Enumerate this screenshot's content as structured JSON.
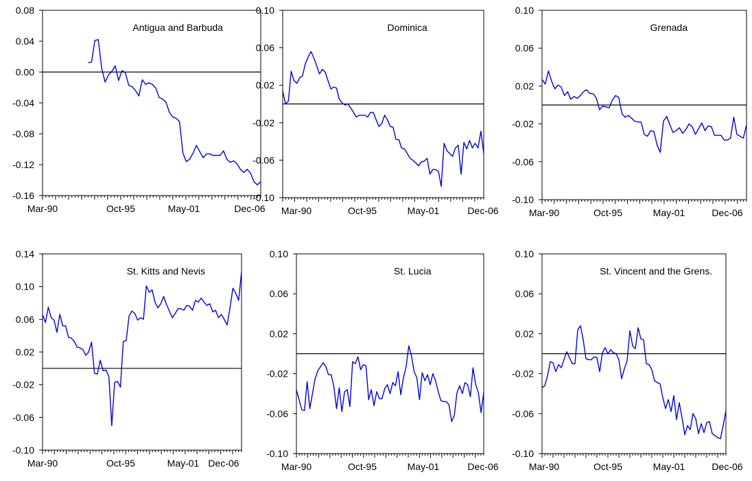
{
  "chart_data": [
    {
      "type": "line",
      "title": "Antigua and Barbuda",
      "xlabel": "",
      "ylabel": "",
      "x_tick_labels": [
        "Mar-90",
        "Oct-95",
        "May-01",
        "Dec-06"
      ],
      "y_tick_labels": [
        "0.08",
        "0.04",
        "0.00",
        "-0.04",
        "-0.08",
        "-0.12",
        "-0.16"
      ],
      "ylim": [
        -0.16,
        0.08
      ],
      "reference_line": 0.0,
      "grid": false,
      "line_color": "#0000e6",
      "series": [
        {
          "x_start": "Q3-1993",
          "frequency": "quarterly",
          "values": [
            0.012,
            0.013,
            0.041,
            0.042,
            0.005,
            -0.013,
            -0.004,
            0.001,
            0.008,
            -0.011,
            0.002,
            -0.001,
            -0.017,
            -0.019,
            -0.024,
            -0.031,
            -0.01,
            -0.016,
            -0.014,
            -0.016,
            -0.021,
            -0.033,
            -0.035,
            -0.039,
            -0.052,
            -0.058,
            -0.06,
            -0.064,
            -0.105,
            -0.116,
            -0.113,
            -0.105,
            -0.095,
            -0.103,
            -0.111,
            -0.106,
            -0.106,
            -0.108,
            -0.108,
            -0.108,
            -0.102,
            -0.113,
            -0.117,
            -0.115,
            -0.119,
            -0.126,
            -0.13,
            -0.126,
            -0.131,
            -0.142,
            -0.146,
            -0.142
          ]
        }
      ]
    },
    {
      "type": "line",
      "title": "Dominica",
      "xlabel": "",
      "ylabel": "",
      "x_tick_labels": [
        "Mar-90",
        "Oct-95",
        "May-01",
        "Dec-06"
      ],
      "y_tick_labels": [
        "0.10",
        "0.06",
        "0.02",
        "-0.02",
        "-0.06",
        "-0.10"
      ],
      "ylim": [
        -0.1,
        0.1
      ],
      "reference_line": 0.0,
      "grid": false,
      "line_color": "#0000e6",
      "series": [
        {
          "x_start": "Q1-1990",
          "frequency": "quarterly",
          "values": [
            0.014,
            0.0,
            0.003,
            0.035,
            0.025,
            0.022,
            0.028,
            0.03,
            0.043,
            0.05,
            0.056,
            0.049,
            0.041,
            0.032,
            0.037,
            0.034,
            0.025,
            0.016,
            0.018,
            0.017,
            0.005,
            0.001,
            -0.001,
            0.0,
            -0.004,
            -0.009,
            -0.014,
            -0.012,
            -0.012,
            -0.012,
            -0.014,
            -0.009,
            -0.009,
            -0.017,
            -0.024,
            -0.021,
            -0.012,
            -0.017,
            -0.024,
            -0.025,
            -0.038,
            -0.038,
            -0.047,
            -0.048,
            -0.053,
            -0.058,
            -0.06,
            -0.063,
            -0.066,
            -0.062,
            -0.061,
            -0.058,
            -0.075,
            -0.07,
            -0.07,
            -0.072,
            -0.088,
            -0.042,
            -0.05,
            -0.053,
            -0.056,
            -0.047,
            -0.044,
            -0.075,
            -0.041,
            -0.048,
            -0.039,
            -0.047,
            -0.042,
            -0.047,
            -0.029,
            -0.053
          ]
        }
      ]
    },
    {
      "type": "line",
      "title": "Grenada",
      "xlabel": "",
      "ylabel": "",
      "x_tick_labels": [
        "Mar-90",
        "Oct-95",
        "May-01",
        "Dec-06"
      ],
      "y_tick_labels": [
        "0.10",
        "0.06",
        "0.02",
        "-0.02",
        "-0.06",
        "-0.10"
      ],
      "ylim": [
        -0.1,
        0.1
      ],
      "reference_line": 0.0,
      "grid": false,
      "line_color": "#0000e6",
      "series": [
        {
          "x_start": "Q1-1990",
          "frequency": "quarterly",
          "values": [
            0.027,
            0.022,
            0.036,
            0.025,
            0.017,
            0.021,
            0.019,
            0.01,
            0.014,
            0.006,
            0.009,
            0.007,
            0.01,
            0.014,
            0.016,
            0.012,
            0.012,
            0.007,
            -0.005,
            -0.001,
            -0.002,
            -0.003,
            0.005,
            0.01,
            0.008,
            -0.009,
            -0.013,
            -0.011,
            -0.014,
            -0.017,
            -0.018,
            -0.018,
            -0.031,
            -0.033,
            -0.027,
            -0.028,
            -0.042,
            -0.05,
            -0.017,
            -0.012,
            -0.021,
            -0.029,
            -0.027,
            -0.024,
            -0.03,
            -0.026,
            -0.02,
            -0.023,
            -0.031,
            -0.025,
            -0.019,
            -0.027,
            -0.022,
            -0.023,
            -0.032,
            -0.032,
            -0.032,
            -0.037,
            -0.037,
            -0.035,
            -0.013,
            -0.031,
            -0.033,
            -0.035,
            -0.021
          ]
        }
      ]
    },
    {
      "type": "line",
      "title": "St. Kitts and Nevis",
      "xlabel": "",
      "ylabel": "",
      "x_tick_labels": [
        "Mar-90",
        "Oct-95",
        "May-01",
        "Dec-06"
      ],
      "y_tick_labels": [
        "0.14",
        "0.10",
        "0.06",
        "0.02",
        "-0.02",
        "-0.06",
        "-0.10"
      ],
      "ylim": [
        -0.1,
        0.14
      ],
      "reference_line": 0.0,
      "grid": false,
      "line_color": "#0000e6",
      "series": [
        {
          "x_start": "Q1-1990",
          "frequency": "quarterly",
          "values": [
            0.066,
            0.056,
            0.075,
            0.062,
            0.059,
            0.044,
            0.066,
            0.052,
            0.052,
            0.038,
            0.037,
            0.033,
            0.026,
            0.025,
            0.023,
            0.016,
            0.02,
            0.032,
            -0.006,
            -0.007,
            0.01,
            -0.003,
            -0.002,
            -0.01,
            -0.07,
            -0.017,
            -0.016,
            -0.023,
            0.033,
            0.034,
            0.064,
            0.07,
            0.067,
            0.059,
            0.062,
            0.06,
            0.101,
            0.093,
            0.096,
            0.081,
            0.074,
            0.079,
            0.088,
            0.078,
            0.07,
            0.062,
            0.067,
            0.073,
            0.073,
            0.071,
            0.077,
            0.076,
            0.071,
            0.083,
            0.081,
            0.086,
            0.081,
            0.077,
            0.079,
            0.069,
            0.071,
            0.062,
            0.066,
            0.06,
            0.053,
            0.074,
            0.098,
            0.092,
            0.083,
            0.118
          ]
        }
      ]
    },
    {
      "type": "line",
      "title": "St. Lucia",
      "xlabel": "",
      "ylabel": "",
      "x_tick_labels": [
        "Mar-90",
        "Oct-95",
        "May-01",
        "Dec-06"
      ],
      "y_tick_labels": [
        "0.10",
        "0.06",
        "0.02",
        "-0.02",
        "-0.06",
        "-0.10"
      ],
      "ylim": [
        -0.1,
        0.1
      ],
      "reference_line": 0.0,
      "grid": false,
      "line_color": "#0000e6",
      "series": [
        {
          "x_start": "Q1-1990",
          "frequency": "quarterly",
          "values": [
            -0.036,
            -0.046,
            -0.056,
            -0.057,
            -0.028,
            -0.055,
            -0.04,
            -0.025,
            -0.017,
            -0.013,
            -0.009,
            -0.013,
            -0.021,
            -0.021,
            -0.033,
            -0.055,
            -0.034,
            -0.058,
            -0.038,
            -0.036,
            -0.053,
            -0.008,
            -0.01,
            -0.003,
            -0.016,
            -0.011,
            -0.012,
            -0.046,
            -0.036,
            -0.052,
            -0.038,
            -0.045,
            -0.045,
            -0.035,
            -0.031,
            -0.04,
            -0.029,
            -0.032,
            -0.018,
            -0.041,
            -0.024,
            -0.013,
            0.008,
            -0.002,
            -0.018,
            -0.024,
            -0.046,
            -0.019,
            -0.027,
            -0.021,
            -0.031,
            -0.02,
            -0.027,
            -0.038,
            -0.047,
            -0.048,
            -0.048,
            -0.051,
            -0.068,
            -0.062,
            -0.039,
            -0.032,
            -0.04,
            -0.029,
            -0.031,
            -0.043,
            -0.014,
            -0.031,
            -0.039,
            -0.059,
            -0.039
          ]
        }
      ]
    },
    {
      "type": "line",
      "title": "St. Vincent and the Grens.",
      "xlabel": "",
      "ylabel": "",
      "x_tick_labels": [
        "Mar-90",
        "Oct-95",
        "May-01",
        "Dec-06"
      ],
      "y_tick_labels": [
        "0.10",
        "0.06",
        "0.02",
        "-0.02",
        "-0.06",
        "-0.10"
      ],
      "ylim": [
        -0.1,
        0.1
      ],
      "reference_line": 0.0,
      "grid": false,
      "line_color": "#0000e6",
      "series": [
        {
          "x_start": "Q1-1990",
          "frequency": "quarterly",
          "values": [
            -0.034,
            -0.032,
            -0.022,
            -0.008,
            -0.009,
            -0.018,
            -0.011,
            -0.014,
            -0.006,
            0.002,
            -0.004,
            -0.01,
            -0.01,
            0.024,
            0.028,
            0.014,
            -0.005,
            -0.006,
            -0.006,
            -0.003,
            -0.004,
            -0.018,
            0.001,
            0.006,
            0.0,
            0.004,
            0.001,
            0.0,
            -0.006,
            -0.025,
            -0.015,
            -0.007,
            0.023,
            0.008,
            0.005,
            0.026,
            0.015,
            0.014,
            -0.01,
            -0.011,
            -0.016,
            -0.027,
            -0.029,
            -0.03,
            -0.044,
            -0.055,
            -0.046,
            -0.058,
            -0.042,
            -0.066,
            -0.049,
            -0.064,
            -0.081,
            -0.072,
            -0.076,
            -0.06,
            -0.065,
            -0.08,
            -0.07,
            -0.079,
            -0.069,
            -0.068,
            -0.08,
            -0.082,
            -0.084,
            -0.085,
            -0.072,
            -0.057
          ]
        }
      ]
    }
  ]
}
